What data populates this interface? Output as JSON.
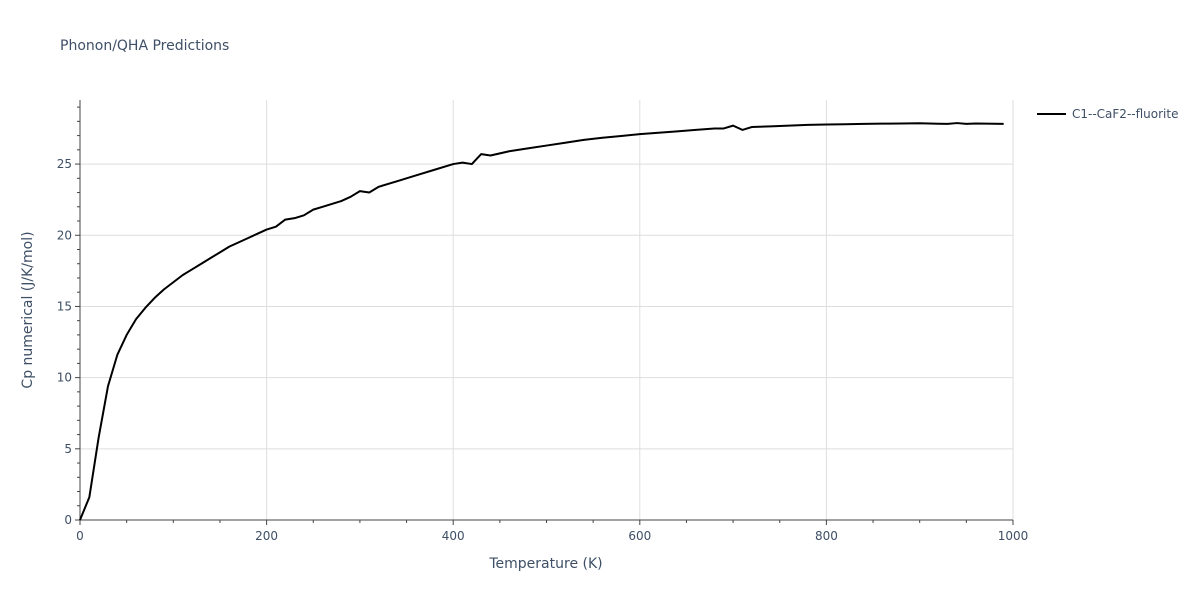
{
  "chart_data": {
    "type": "line",
    "title": "Phonon/QHA Predictions",
    "xlabel": "Temperature (K)",
    "ylabel": "Cp numerical (J/K/mol)",
    "xlim": [
      0,
      1000
    ],
    "ylim": [
      0,
      29.5
    ],
    "xticks": [
      0,
      200,
      400,
      600,
      800,
      1000
    ],
    "xtick_labels": [
      "0",
      "200",
      "400",
      "600",
      "800",
      "1000"
    ],
    "yticks": [
      0,
      5,
      10,
      15,
      20,
      25
    ],
    "ytick_labels": [
      "0",
      "5",
      "10",
      "15",
      "20",
      "25"
    ],
    "grid": true,
    "legend_position": "top-right outside",
    "series": [
      {
        "name": "C1--CaF2--fluorite",
        "color": "#000000",
        "x": [
          0,
          10,
          20,
          30,
          40,
          50,
          60,
          70,
          80,
          90,
          100,
          110,
          120,
          130,
          140,
          150,
          160,
          170,
          180,
          190,
          200,
          210,
          220,
          230,
          240,
          250,
          260,
          270,
          280,
          290,
          300,
          310,
          320,
          340,
          360,
          380,
          400,
          410,
          420,
          430,
          440,
          460,
          480,
          500,
          520,
          540,
          560,
          580,
          600,
          620,
          640,
          660,
          680,
          690,
          700,
          710,
          720,
          740,
          760,
          780,
          800,
          820,
          840,
          860,
          880,
          900,
          910,
          920,
          930,
          940,
          950,
          960,
          970,
          980,
          990
        ],
        "y": [
          0,
          1.6,
          5.8,
          9.4,
          11.6,
          13.0,
          14.1,
          14.9,
          15.6,
          16.2,
          16.7,
          17.2,
          17.6,
          18.0,
          18.4,
          18.8,
          19.2,
          19.5,
          19.8,
          20.1,
          20.4,
          20.6,
          21.1,
          21.2,
          21.4,
          21.8,
          22.0,
          22.2,
          22.4,
          22.7,
          23.1,
          23.0,
          23.4,
          23.8,
          24.2,
          24.6,
          25.0,
          25.1,
          25.0,
          25.7,
          25.6,
          25.9,
          26.1,
          26.3,
          26.5,
          26.7,
          26.85,
          26.97,
          27.1,
          27.2,
          27.3,
          27.4,
          27.5,
          27.5,
          27.7,
          27.4,
          27.6,
          27.65,
          27.7,
          27.75,
          27.78,
          27.8,
          27.82,
          27.84,
          27.85,
          27.87,
          27.85,
          27.83,
          27.82,
          27.88,
          27.82,
          27.85,
          27.84,
          27.83,
          27.82
        ]
      }
    ]
  }
}
